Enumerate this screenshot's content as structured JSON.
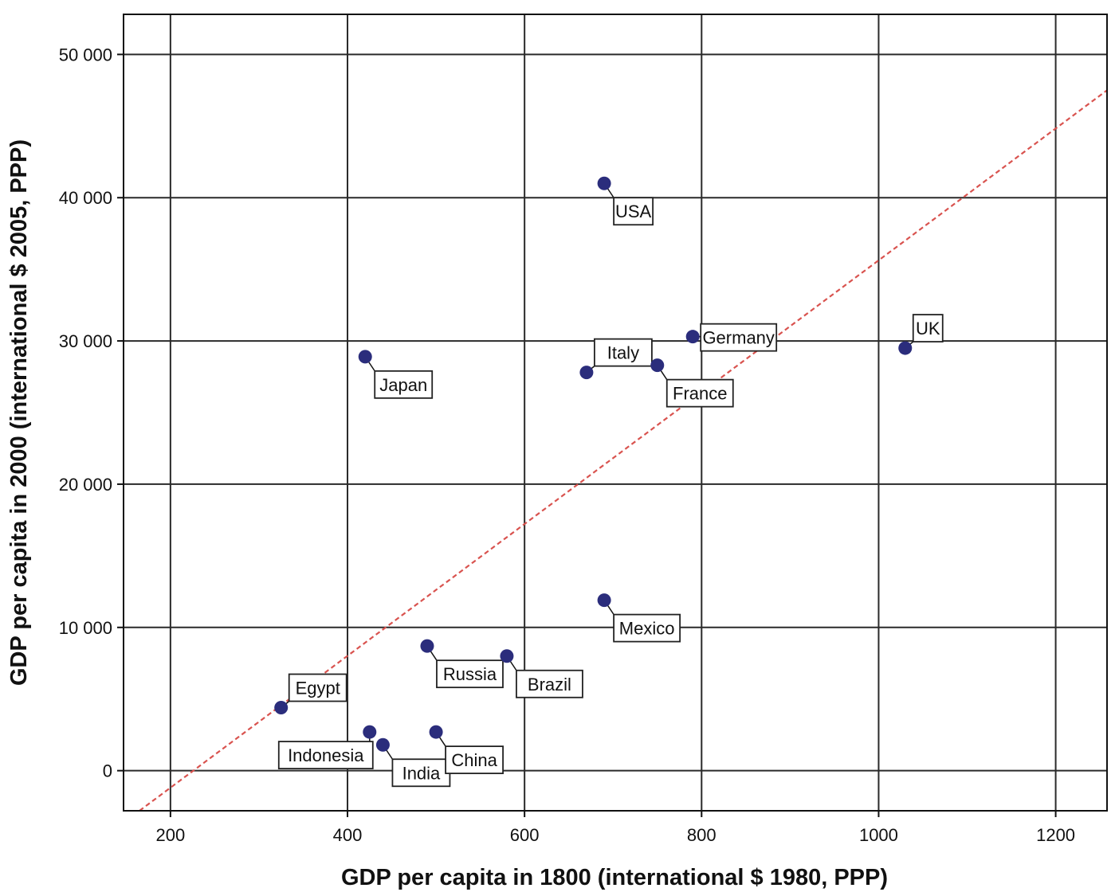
{
  "chart_data": {
    "type": "scatter",
    "xlabel": "GDP per capita in 1800 (international $ 1980, PPP)",
    "ylabel": "GDP per capita in 2000 (international $ 2005, PPP)",
    "xlim": [
      147,
      1258
    ],
    "ylim": [
      -2800,
      52800
    ],
    "x_ticks": [
      200,
      400,
      600,
      800,
      1000,
      1200
    ],
    "x_tick_labels": [
      "200",
      "400",
      "600",
      "800",
      "1000",
      "1200"
    ],
    "y_ticks": [
      0,
      10000,
      20000,
      30000,
      40000,
      50000
    ],
    "y_tick_labels": [
      "0",
      "10 000",
      "20 000",
      "30 000",
      "40 000",
      "50 000"
    ],
    "grid": true,
    "point_color": "#2b2d7c",
    "fit_line": {
      "x": [
        165,
        1258
      ],
      "y": [
        -2800,
        47500
      ],
      "color": "#d9534f",
      "style": "dashed"
    },
    "points": [
      {
        "label": "USA",
        "x": 690,
        "y": 41000,
        "label_pos": "below-right"
      },
      {
        "label": "UK",
        "x": 1030,
        "y": 29500,
        "label_pos": "above-right"
      },
      {
        "label": "Germany",
        "x": 790,
        "y": 30300,
        "label_pos": "right"
      },
      {
        "label": "Italy",
        "x": 670,
        "y": 27800,
        "label_pos": "above-right"
      },
      {
        "label": "France",
        "x": 750,
        "y": 28300,
        "label_pos": "below-right"
      },
      {
        "label": "Japan",
        "x": 420,
        "y": 28900,
        "label_pos": "below-right"
      },
      {
        "label": "Mexico",
        "x": 690,
        "y": 11900,
        "label_pos": "below-right"
      },
      {
        "label": "Russia",
        "x": 490,
        "y": 8700,
        "label_pos": "below-right"
      },
      {
        "label": "Brazil",
        "x": 580,
        "y": 8000,
        "label_pos": "below-right"
      },
      {
        "label": "Egypt",
        "x": 325,
        "y": 4400,
        "label_pos": "above-right"
      },
      {
        "label": "Indonesia",
        "x": 425,
        "y": 2700,
        "label_pos": "below-left"
      },
      {
        "label": "India",
        "x": 440,
        "y": 1800,
        "label_pos": "below-right"
      },
      {
        "label": "China",
        "x": 500,
        "y": 2700,
        "label_pos": "below-right"
      }
    ]
  }
}
